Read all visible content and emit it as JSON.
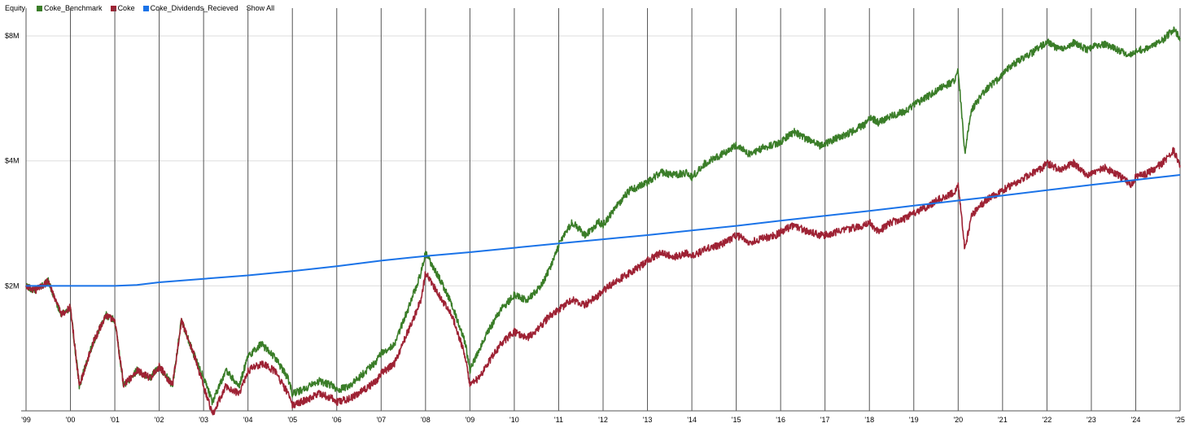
{
  "legend": {
    "title": "Equity",
    "show_all": "Show All"
  },
  "chart_data": {
    "type": "line",
    "title": "",
    "xlabel": "",
    "ylabel": "",
    "x_ticks": [
      "'99",
      "'00",
      "'01",
      "'02",
      "'03",
      "'04",
      "'05",
      "'06",
      "'07",
      "'08",
      "'09",
      "'10",
      "'11",
      "'12",
      "'13",
      "'14",
      "'15",
      "'16",
      "'17",
      "'18",
      "'19",
      "'20",
      "'21",
      "'22",
      "'23",
      "'24",
      "'25"
    ],
    "y_ticks": [
      "$2M",
      "$4M",
      "$8M"
    ],
    "y_scale": "log",
    "ylim": [
      1000000,
      9000000
    ],
    "xlim": [
      1999.0,
      2025.0
    ],
    "grid": {
      "vertical": true,
      "horizontal": true
    },
    "legend_position": "top-left",
    "series": [
      {
        "name": "Coke_Benchmark",
        "color": "#3a7d28",
        "points": [
          [
            1999.0,
            2000000
          ],
          [
            1999.2,
            1950000
          ],
          [
            1999.5,
            2050000
          ],
          [
            1999.8,
            1700000
          ],
          [
            2000.0,
            1780000
          ],
          [
            2000.2,
            1150000
          ],
          [
            2000.5,
            1450000
          ],
          [
            2000.8,
            1700000
          ],
          [
            2001.0,
            1650000
          ],
          [
            2001.2,
            1150000
          ],
          [
            2001.5,
            1250000
          ],
          [
            2001.8,
            1200000
          ],
          [
            2002.0,
            1280000
          ],
          [
            2002.3,
            1150000
          ],
          [
            2002.5,
            1650000
          ],
          [
            2002.8,
            1350000
          ],
          [
            2003.0,
            1200000
          ],
          [
            2003.2,
            1050000
          ],
          [
            2003.5,
            1250000
          ],
          [
            2003.8,
            1150000
          ],
          [
            2004.0,
            1350000
          ],
          [
            2004.3,
            1450000
          ],
          [
            2004.6,
            1350000
          ],
          [
            2004.9,
            1200000
          ],
          [
            2005.0,
            1100000
          ],
          [
            2005.3,
            1130000
          ],
          [
            2005.6,
            1180000
          ],
          [
            2005.9,
            1150000
          ],
          [
            2006.0,
            1120000
          ],
          [
            2006.3,
            1150000
          ],
          [
            2006.6,
            1230000
          ],
          [
            2006.9,
            1320000
          ],
          [
            2007.0,
            1380000
          ],
          [
            2007.3,
            1450000
          ],
          [
            2007.6,
            1750000
          ],
          [
            2007.9,
            2150000
          ],
          [
            2008.0,
            2400000
          ],
          [
            2008.3,
            2100000
          ],
          [
            2008.6,
            1800000
          ],
          [
            2008.9,
            1450000
          ],
          [
            2009.0,
            1250000
          ],
          [
            2009.2,
            1400000
          ],
          [
            2009.4,
            1550000
          ],
          [
            2009.7,
            1750000
          ],
          [
            2010.0,
            1900000
          ],
          [
            2010.3,
            1850000
          ],
          [
            2010.6,
            2000000
          ],
          [
            2010.8,
            2200000
          ],
          [
            2011.0,
            2500000
          ],
          [
            2011.3,
            2850000
          ],
          [
            2011.6,
            2650000
          ],
          [
            2011.9,
            2850000
          ],
          [
            2012.0,
            2800000
          ],
          [
            2012.3,
            3100000
          ],
          [
            2012.6,
            3400000
          ],
          [
            2012.9,
            3500000
          ],
          [
            2013.0,
            3550000
          ],
          [
            2013.3,
            3750000
          ],
          [
            2013.6,
            3700000
          ],
          [
            2013.9,
            3750000
          ],
          [
            2014.0,
            3650000
          ],
          [
            2014.3,
            3950000
          ],
          [
            2014.6,
            4100000
          ],
          [
            2014.9,
            4300000
          ],
          [
            2015.0,
            4350000
          ],
          [
            2015.3,
            4150000
          ],
          [
            2015.6,
            4300000
          ],
          [
            2015.9,
            4400000
          ],
          [
            2016.0,
            4450000
          ],
          [
            2016.3,
            4700000
          ],
          [
            2016.6,
            4500000
          ],
          [
            2016.9,
            4350000
          ],
          [
            2017.0,
            4400000
          ],
          [
            2017.3,
            4550000
          ],
          [
            2017.6,
            4700000
          ],
          [
            2017.9,
            4900000
          ],
          [
            2018.0,
            5100000
          ],
          [
            2018.2,
            4950000
          ],
          [
            2018.5,
            5150000
          ],
          [
            2018.8,
            5250000
          ],
          [
            2019.0,
            5450000
          ],
          [
            2019.3,
            5700000
          ],
          [
            2019.6,
            6000000
          ],
          [
            2019.9,
            6200000
          ],
          [
            2020.0,
            6600000
          ],
          [
            2020.15,
            4200000
          ],
          [
            2020.3,
            5300000
          ],
          [
            2020.6,
            5900000
          ],
          [
            2020.9,
            6300000
          ],
          [
            2021.0,
            6500000
          ],
          [
            2021.3,
            6900000
          ],
          [
            2021.6,
            7200000
          ],
          [
            2021.9,
            7600000
          ],
          [
            2022.0,
            7750000
          ],
          [
            2022.3,
            7400000
          ],
          [
            2022.6,
            7700000
          ],
          [
            2022.9,
            7400000
          ],
          [
            2023.0,
            7500000
          ],
          [
            2023.3,
            7650000
          ],
          [
            2023.6,
            7400000
          ],
          [
            2023.9,
            7200000
          ],
          [
            2024.0,
            7350000
          ],
          [
            2024.3,
            7500000
          ],
          [
            2024.6,
            7800000
          ],
          [
            2024.85,
            8300000
          ],
          [
            2025.0,
            7900000
          ]
        ]
      },
      {
        "name": "Coke",
        "color": "#9e2234",
        "points": [
          [
            1999.0,
            2000000
          ],
          [
            1999.2,
            1950000
          ],
          [
            1999.5,
            2050000
          ],
          [
            1999.8,
            1700000
          ],
          [
            2000.0,
            1780000
          ],
          [
            2000.2,
            1150000
          ],
          [
            2000.5,
            1450000
          ],
          [
            2000.8,
            1700000
          ],
          [
            2001.0,
            1650000
          ],
          [
            2001.2,
            1150000
          ],
          [
            2001.5,
            1250000
          ],
          [
            2001.8,
            1200000
          ],
          [
            2002.0,
            1280000
          ],
          [
            2002.3,
            1150000
          ],
          [
            2002.5,
            1650000
          ],
          [
            2002.8,
            1350000
          ],
          [
            2003.0,
            1150000
          ],
          [
            2003.2,
            980000
          ],
          [
            2003.5,
            1150000
          ],
          [
            2003.8,
            1100000
          ],
          [
            2004.0,
            1250000
          ],
          [
            2004.3,
            1300000
          ],
          [
            2004.6,
            1250000
          ],
          [
            2004.9,
            1100000
          ],
          [
            2005.0,
            1030000
          ],
          [
            2005.3,
            1060000
          ],
          [
            2005.6,
            1100000
          ],
          [
            2005.9,
            1070000
          ],
          [
            2006.0,
            1050000
          ],
          [
            2006.3,
            1070000
          ],
          [
            2006.6,
            1120000
          ],
          [
            2006.9,
            1180000
          ],
          [
            2007.0,
            1230000
          ],
          [
            2007.3,
            1300000
          ],
          [
            2007.6,
            1550000
          ],
          [
            2007.9,
            1850000
          ],
          [
            2008.0,
            2150000
          ],
          [
            2008.3,
            1900000
          ],
          [
            2008.6,
            1700000
          ],
          [
            2008.9,
            1350000
          ],
          [
            2009.0,
            1150000
          ],
          [
            2009.2,
            1200000
          ],
          [
            2009.4,
            1300000
          ],
          [
            2009.7,
            1450000
          ],
          [
            2010.0,
            1550000
          ],
          [
            2010.3,
            1500000
          ],
          [
            2010.6,
            1600000
          ],
          [
            2010.8,
            1700000
          ],
          [
            2011.0,
            1750000
          ],
          [
            2011.3,
            1850000
          ],
          [
            2011.6,
            1800000
          ],
          [
            2011.9,
            1900000
          ],
          [
            2012.0,
            1950000
          ],
          [
            2012.3,
            2050000
          ],
          [
            2012.6,
            2150000
          ],
          [
            2012.9,
            2250000
          ],
          [
            2013.0,
            2300000
          ],
          [
            2013.3,
            2400000
          ],
          [
            2013.6,
            2350000
          ],
          [
            2013.9,
            2400000
          ],
          [
            2014.0,
            2350000
          ],
          [
            2014.3,
            2450000
          ],
          [
            2014.6,
            2500000
          ],
          [
            2014.9,
            2600000
          ],
          [
            2015.0,
            2650000
          ],
          [
            2015.3,
            2550000
          ],
          [
            2015.6,
            2600000
          ],
          [
            2015.9,
            2650000
          ],
          [
            2016.0,
            2700000
          ],
          [
            2016.3,
            2800000
          ],
          [
            2016.6,
            2700000
          ],
          [
            2016.9,
            2650000
          ],
          [
            2017.0,
            2650000
          ],
          [
            2017.3,
            2700000
          ],
          [
            2017.6,
            2750000
          ],
          [
            2017.9,
            2800000
          ],
          [
            2018.0,
            2850000
          ],
          [
            2018.2,
            2700000
          ],
          [
            2018.5,
            2850000
          ],
          [
            2018.8,
            2900000
          ],
          [
            2019.0,
            3000000
          ],
          [
            2019.3,
            3100000
          ],
          [
            2019.6,
            3250000
          ],
          [
            2019.9,
            3350000
          ],
          [
            2020.0,
            3500000
          ],
          [
            2020.15,
            2450000
          ],
          [
            2020.3,
            2950000
          ],
          [
            2020.6,
            3200000
          ],
          [
            2020.9,
            3350000
          ],
          [
            2021.0,
            3400000
          ],
          [
            2021.3,
            3550000
          ],
          [
            2021.6,
            3700000
          ],
          [
            2021.9,
            3850000
          ],
          [
            2022.0,
            3950000
          ],
          [
            2022.3,
            3800000
          ],
          [
            2022.6,
            3950000
          ],
          [
            2022.9,
            3700000
          ],
          [
            2023.0,
            3750000
          ],
          [
            2023.3,
            3850000
          ],
          [
            2023.6,
            3700000
          ],
          [
            2023.9,
            3500000
          ],
          [
            2024.0,
            3650000
          ],
          [
            2024.3,
            3750000
          ],
          [
            2024.6,
            3950000
          ],
          [
            2024.85,
            4250000
          ],
          [
            2025.0,
            3900000
          ]
        ]
      },
      {
        "name": "Coke_Dividends_Recieved",
        "color": "#1a73e8",
        "points": [
          [
            1999.0,
            2000000
          ],
          [
            2000.0,
            2000000
          ],
          [
            2001.0,
            2000000
          ],
          [
            2001.5,
            2010000
          ],
          [
            2002.0,
            2040000
          ],
          [
            2003.0,
            2080000
          ],
          [
            2004.0,
            2120000
          ],
          [
            2005.0,
            2170000
          ],
          [
            2006.0,
            2230000
          ],
          [
            2007.0,
            2300000
          ],
          [
            2008.0,
            2360000
          ],
          [
            2009.0,
            2410000
          ],
          [
            2010.0,
            2470000
          ],
          [
            2011.0,
            2530000
          ],
          [
            2012.0,
            2590000
          ],
          [
            2013.0,
            2650000
          ],
          [
            2014.0,
            2720000
          ],
          [
            2015.0,
            2790000
          ],
          [
            2016.0,
            2870000
          ],
          [
            2017.0,
            2950000
          ],
          [
            2018.0,
            3030000
          ],
          [
            2019.0,
            3120000
          ],
          [
            2020.0,
            3210000
          ],
          [
            2021.0,
            3300000
          ],
          [
            2022.0,
            3400000
          ],
          [
            2023.0,
            3500000
          ],
          [
            2024.0,
            3600000
          ],
          [
            2025.0,
            3700000
          ]
        ]
      }
    ]
  }
}
